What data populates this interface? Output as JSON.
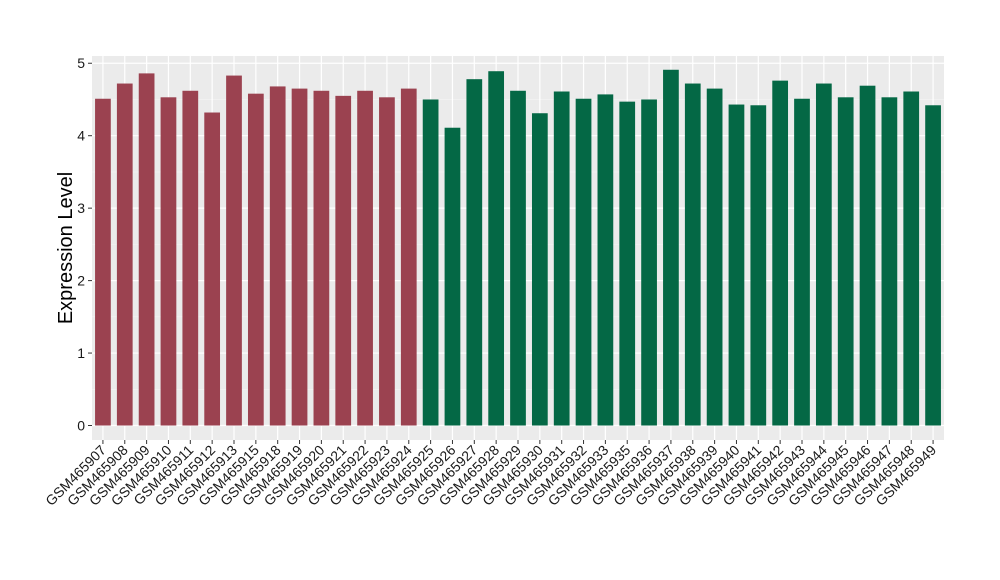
{
  "chart_data": {
    "type": "bar",
    "ylabel": "Expression Level",
    "xlabel": "",
    "ylim": [
      -0.2,
      5.1
    ],
    "yticks": [
      0,
      1,
      2,
      3,
      4,
      5
    ],
    "grid": true,
    "background": "#ebebeb",
    "categories": [
      "GSM465907",
      "GSM465908",
      "GSM465909",
      "GSM465910",
      "GSM465911",
      "GSM465912",
      "GSM465913",
      "GSM465915",
      "GSM465918",
      "GSM465919",
      "GSM465920",
      "GSM465921",
      "GSM465922",
      "GSM465923",
      "GSM465924",
      "GSM465925",
      "GSM465926",
      "GSM465927",
      "GSM465928",
      "GSM465929",
      "GSM465930",
      "GSM465931",
      "GSM465932",
      "GSM465933",
      "GSM465935",
      "GSM465936",
      "GSM465937",
      "GSM465938",
      "GSM465939",
      "GSM465940",
      "GSM465941",
      "GSM465942",
      "GSM465943",
      "GSM465944",
      "GSM465945",
      "GSM465946",
      "GSM465947",
      "GSM465948",
      "GSM465949"
    ],
    "values": [
      4.51,
      4.72,
      4.86,
      4.53,
      4.62,
      4.32,
      4.83,
      4.58,
      4.68,
      4.65,
      4.62,
      4.55,
      4.62,
      4.53,
      4.65,
      4.5,
      4.11,
      4.78,
      4.89,
      4.62,
      4.31,
      4.61,
      4.51,
      4.57,
      4.47,
      4.5,
      4.91,
      4.72,
      4.65,
      4.43,
      4.42,
      4.76,
      4.51,
      4.72,
      4.53,
      4.69,
      4.53,
      4.61,
      4.42
    ],
    "groups": [
      0,
      0,
      0,
      0,
      0,
      0,
      0,
      0,
      0,
      0,
      0,
      0,
      0,
      0,
      0,
      1,
      1,
      1,
      1,
      1,
      1,
      1,
      1,
      1,
      1,
      1,
      1,
      1,
      1,
      1,
      1,
      1,
      1,
      1,
      1,
      1,
      1,
      1,
      1
    ],
    "colors": [
      "#9b4250",
      "#046845"
    ]
  }
}
